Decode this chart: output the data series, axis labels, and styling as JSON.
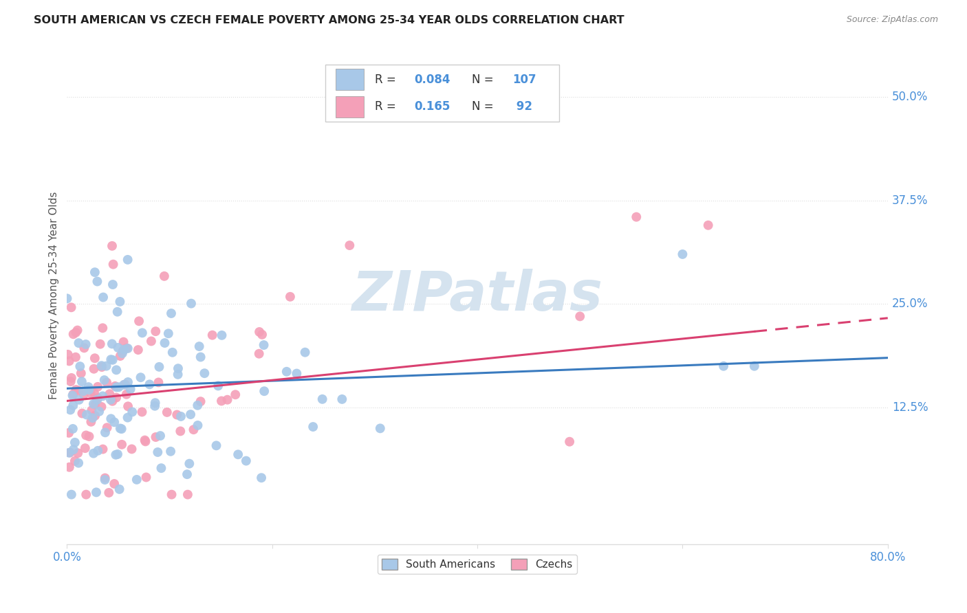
{
  "title": "SOUTH AMERICAN VS CZECH FEMALE POVERTY AMONG 25-34 YEAR OLDS CORRELATION CHART",
  "source": "Source: ZipAtlas.com",
  "ylabel": "Female Poverty Among 25-34 Year Olds",
  "ytick_labels": [
    "12.5%",
    "25.0%",
    "37.5%",
    "50.0%"
  ],
  "ytick_values": [
    0.125,
    0.25,
    0.375,
    0.5
  ],
  "xlim": [
    0.0,
    0.8
  ],
  "ylim": [
    -0.04,
    0.56
  ],
  "color_blue": "#a8c8e8",
  "color_pink": "#f4a0b8",
  "line_color_blue": "#3a7bbf",
  "line_color_pink": "#d94070",
  "axis_label_color": "#4a90d9",
  "title_color": "#222222",
  "source_color": "#888888",
  "watermark_text": "ZIPatlas",
  "watermark_color": "#d5e3ef",
  "background_color": "#ffffff",
  "grid_color": "#dddddd",
  "legend_border_color": "#cccccc",
  "R_blue": 0.084,
  "N_blue": 107,
  "R_pink": 0.165,
  "N_pink": 92,
  "blue_line_x0": 0.0,
  "blue_line_y0": 0.148,
  "blue_line_x1": 0.8,
  "blue_line_y1": 0.185,
  "pink_line_x0": 0.0,
  "pink_line_y0": 0.133,
  "pink_line_x1": 0.8,
  "pink_line_y1": 0.233
}
